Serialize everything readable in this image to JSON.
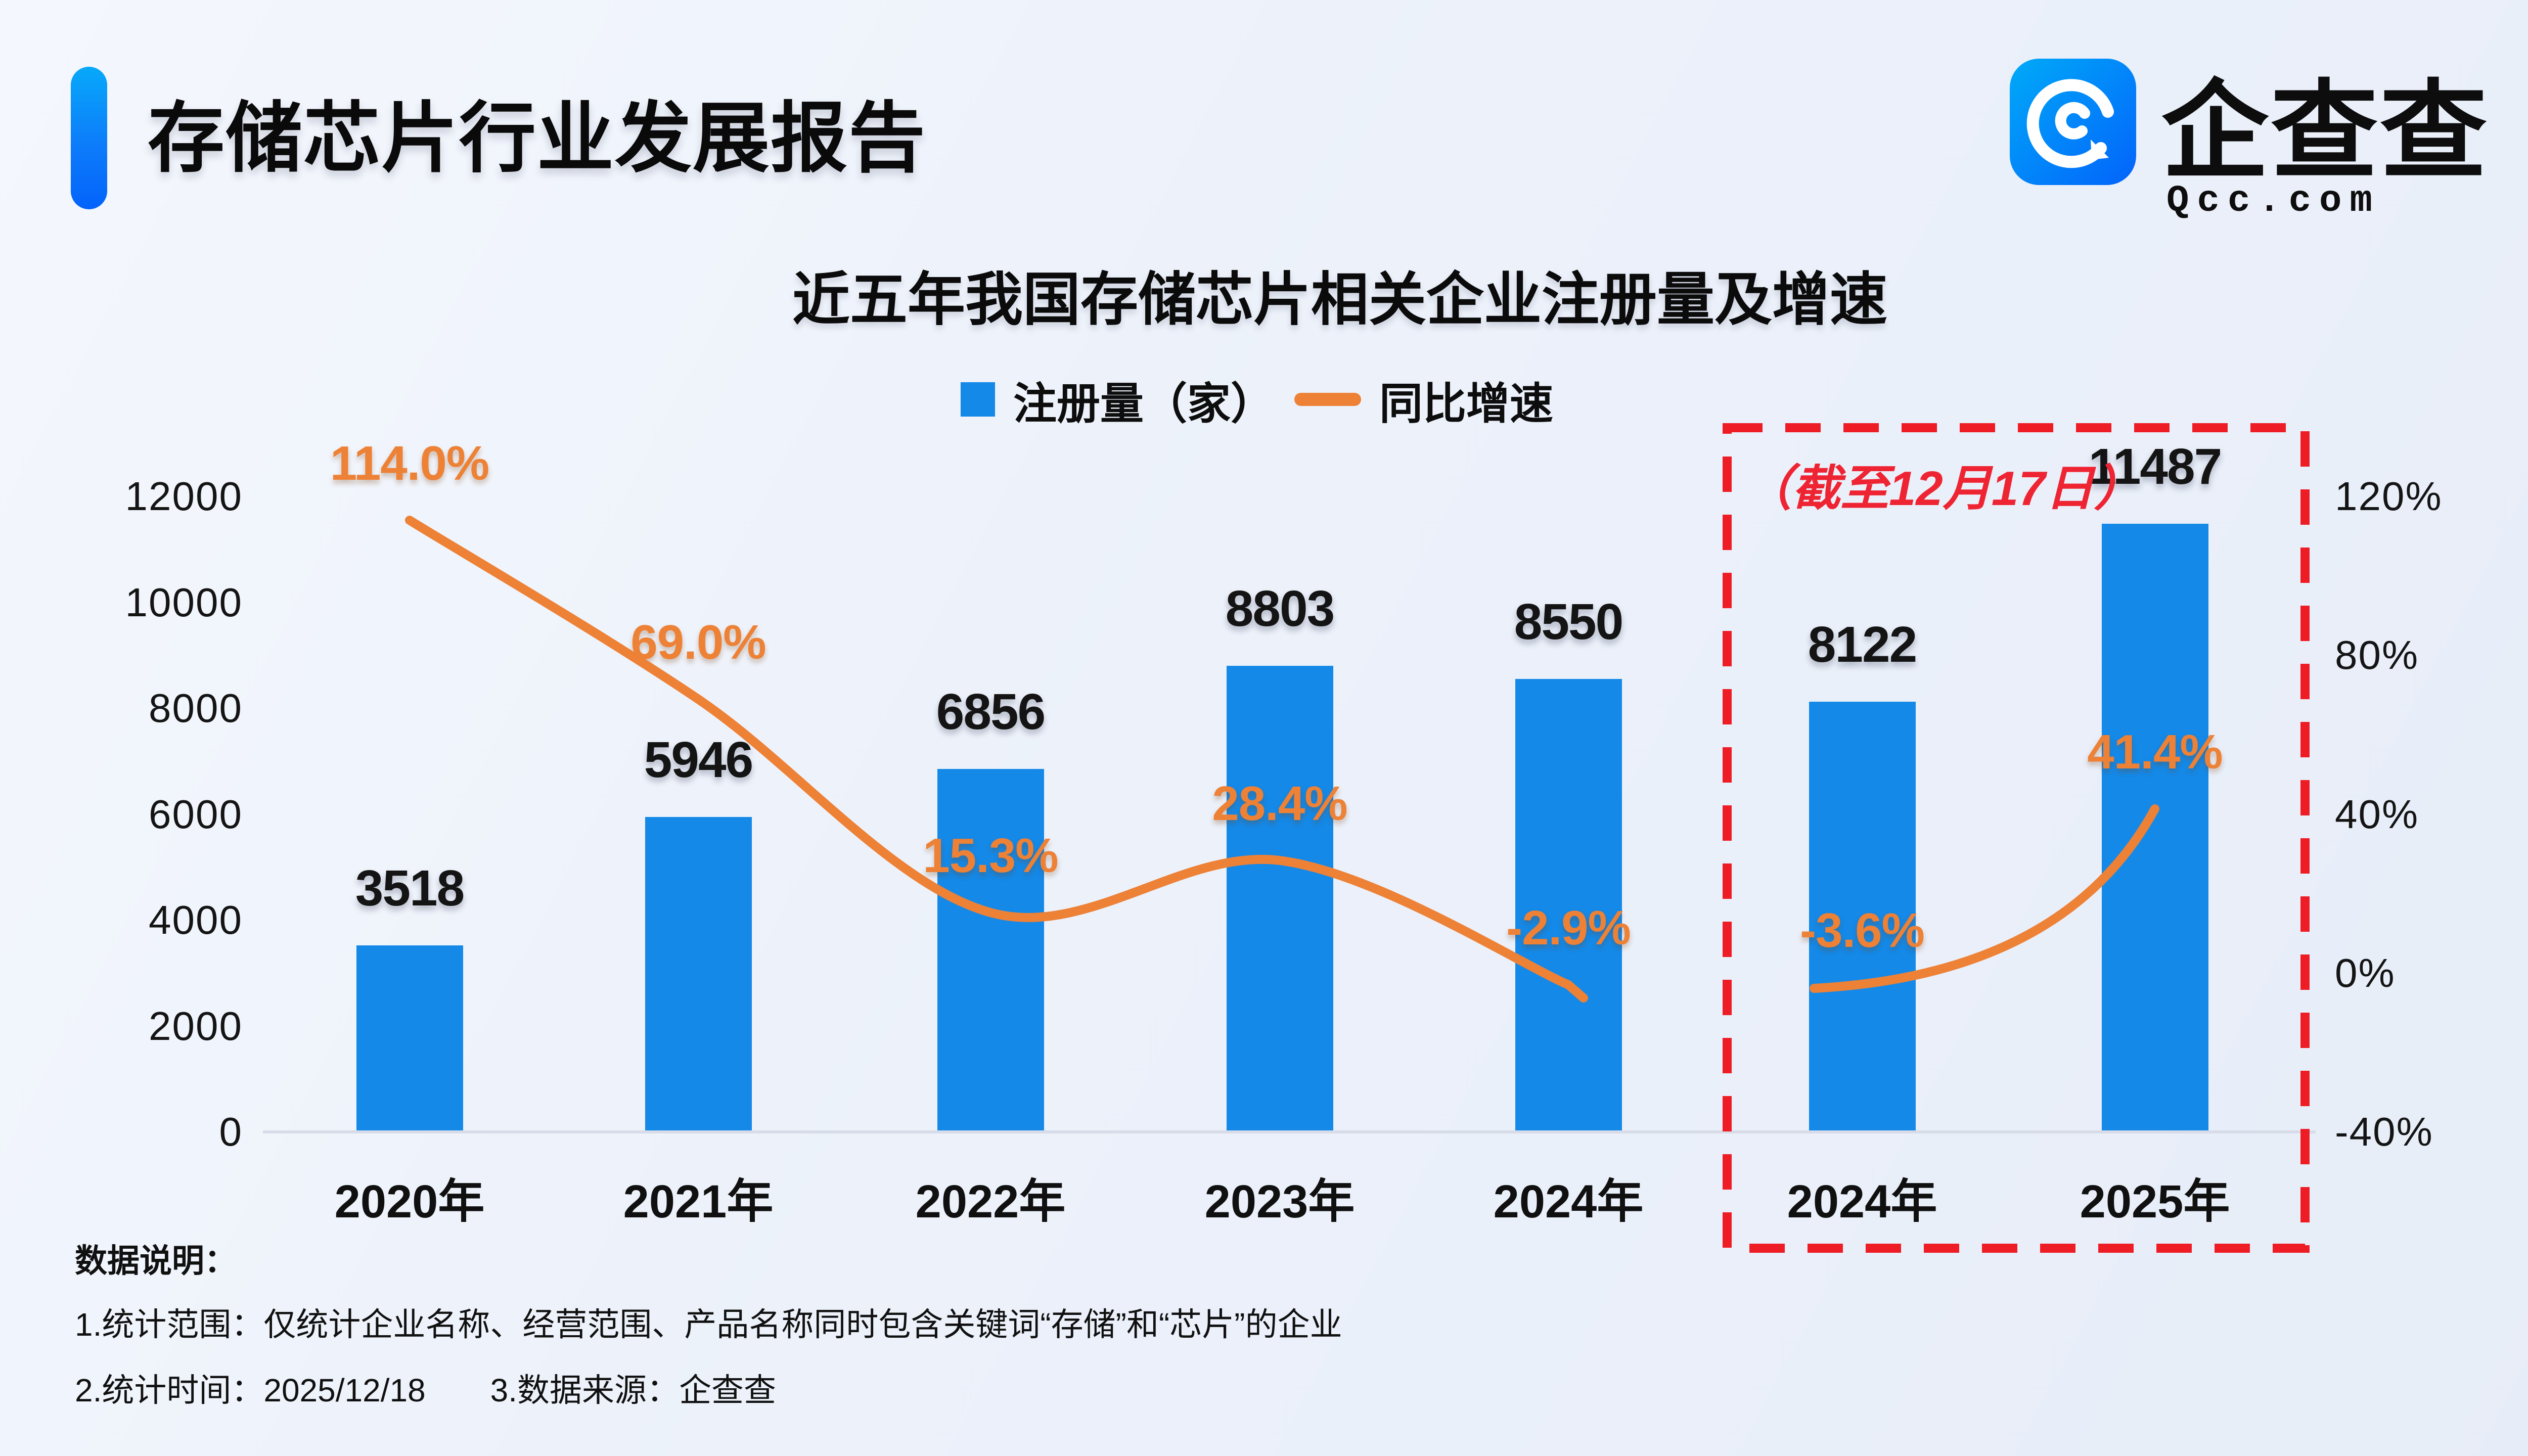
{
  "header": {
    "title": "存储芯片行业发展报告",
    "accent_color": "#0a84fa"
  },
  "logo": {
    "name": "企查查",
    "domain": "Qcc.com",
    "icon": "qcc-spiral-icon",
    "icon_color": "#0a8cf8"
  },
  "chart": {
    "title": "近五年我国存储芯片相关企业注册量及增速",
    "legend": [
      {
        "label": "注册量（家）",
        "marker": "square",
        "color": "#1489E8"
      },
      {
        "label": "同比增速",
        "marker": "line",
        "color": "#ED8136"
      }
    ],
    "annotation": "（截至12月17日）",
    "annotation_color": "#EE2433",
    "highlight_box_color": "#EE1C25",
    "chart_data": {
      "type": "bar+line",
      "categories": [
        "2020年",
        "2021年",
        "2022年",
        "2023年",
        "2024年",
        "2024年",
        "2025年"
      ],
      "series": [
        {
          "name": "注册量（家）",
          "type": "bar",
          "color": "#1489E8",
          "values": [
            3518,
            5946,
            6856,
            8803,
            8550,
            8122,
            11487
          ]
        },
        {
          "name": "同比增速",
          "type": "line",
          "color": "#ED8136",
          "values": [
            114.0,
            69.0,
            15.3,
            28.4,
            -2.9,
            -3.6,
            41.4
          ],
          "labels": [
            "114.0%",
            "69.0%",
            "15.3%",
            "28.4%",
            "-2.9%",
            "-3.6%",
            "41.4%"
          ],
          "segments": [
            [
              0,
              4
            ],
            [
              5,
              6
            ]
          ]
        }
      ],
      "left_axis": {
        "ticks": [
          "12000",
          "10000",
          "8000",
          "6000",
          "4000",
          "2000",
          "0"
        ],
        "range": [
          0,
          12000
        ]
      },
      "right_axis": {
        "ticks": [
          "120%",
          "80%",
          "40%",
          "0%",
          "-40%"
        ],
        "range": [
          -40,
          120
        ]
      },
      "highlight_box_categories": [
        5,
        6
      ],
      "grid": false,
      "legend_position": "top"
    }
  },
  "footnotes": {
    "heading": "数据说明：",
    "line1": "1.统计范围：仅统计企业名称、经营范围、产品名称同时包含关键词“存储”和“芯片”的企业",
    "line2": "2.统计时间：2025/12/18　　3.数据来源：企查查"
  }
}
